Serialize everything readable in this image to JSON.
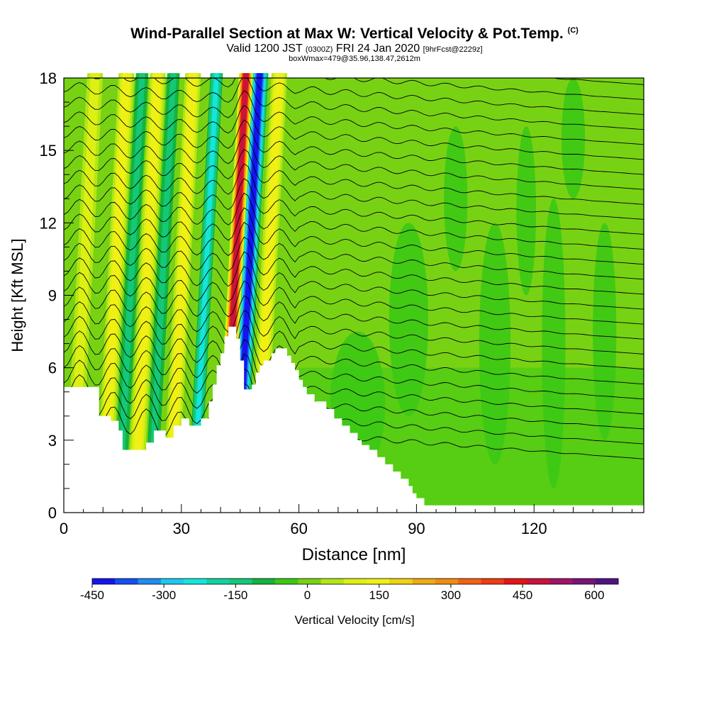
{
  "header": {
    "title": "Wind-Parallel Section at Max W: Vertical Velocity & Pot.Temp.",
    "title_mark": "(C)",
    "subtitle_a": "Valid 1200 JST",
    "subtitle_b": "(0300Z)",
    "subtitle_c": "FRI 24 Jan 2020",
    "subtitle_d": "[9hrFcst@2229z]",
    "box_line": "boxWmax=479@35.96,138.47,2612m"
  },
  "chart_data": {
    "type": "heatmap",
    "title": "Wind-Parallel Section at Max W: Vertical Velocity & Pot.Temp.",
    "xlabel": "Distance [nm]",
    "ylabel": "Height [Kft MSL]",
    "xlim": [
      0,
      148
    ],
    "ylim": [
      0,
      18
    ],
    "xticks": [
      0,
      30,
      60,
      90,
      120
    ],
    "yticks": [
      0,
      3,
      6,
      9,
      12,
      15,
      18
    ],
    "colorbar": {
      "label": "Vertical Velocity [cm/s]",
      "ticks": [
        -450,
        -300,
        -150,
        0,
        150,
        300,
        450,
        600
      ],
      "range": [
        -450,
        650
      ],
      "colors": [
        "#1414f0",
        "#1450f0",
        "#1e8cf0",
        "#1ec8f0",
        "#14e6dc",
        "#14d2a0",
        "#14c878",
        "#14b43c",
        "#3cc814",
        "#78d214",
        "#b4e614",
        "#dcf014",
        "#f0f014",
        "#f0d214",
        "#f0aa14",
        "#f08c14",
        "#f06414",
        "#f03c14",
        "#e61414",
        "#c8143c",
        "#a01464",
        "#781478",
        "#501482"
      ]
    },
    "terrain_profile": [
      [
        0,
        5.2
      ],
      [
        9,
        5.2
      ],
      [
        9,
        4
      ],
      [
        12,
        4
      ],
      [
        12,
        3.8
      ],
      [
        14,
        3.8
      ],
      [
        14,
        3.4
      ],
      [
        15,
        3.4
      ],
      [
        15,
        2.6
      ],
      [
        21,
        2.6
      ],
      [
        21,
        2.9
      ],
      [
        23,
        2.9
      ],
      [
        23,
        3.4
      ],
      [
        26,
        3.4
      ],
      [
        26,
        3.1
      ],
      [
        28,
        3.1
      ],
      [
        28,
        3.6
      ],
      [
        30,
        3.6
      ],
      [
        30,
        3.9
      ],
      [
        32,
        3.9
      ],
      [
        32,
        3.6
      ],
      [
        35,
        3.6
      ],
      [
        35,
        3.9
      ],
      [
        37,
        3.9
      ],
      [
        37,
        4.6
      ],
      [
        38,
        4.6
      ],
      [
        38,
        5.3
      ],
      [
        39,
        5.3
      ],
      [
        39,
        6.1
      ],
      [
        40,
        6.1
      ],
      [
        40,
        6.6
      ],
      [
        41,
        6.6
      ],
      [
        41,
        7.3
      ],
      [
        42,
        7.3
      ],
      [
        42,
        7.7
      ],
      [
        44,
        7.7
      ],
      [
        44,
        7.2
      ],
      [
        45,
        7.2
      ],
      [
        45,
        6.3
      ],
      [
        46,
        6.3
      ],
      [
        46,
        5.1
      ],
      [
        48,
        5.1
      ],
      [
        48,
        5.3
      ],
      [
        49,
        5.3
      ],
      [
        49,
        5.8
      ],
      [
        50,
        5.8
      ],
      [
        50,
        6.1
      ],
      [
        51,
        6.1
      ],
      [
        51,
        6.3
      ],
      [
        53,
        6.3
      ],
      [
        53,
        6.6
      ],
      [
        54,
        6.6
      ],
      [
        54,
        6.8
      ],
      [
        57,
        6.8
      ],
      [
        57,
        6.5
      ],
      [
        58,
        6.5
      ],
      [
        58,
        6.2
      ],
      [
        59,
        6.2
      ],
      [
        59,
        5.9
      ],
      [
        60,
        5.9
      ],
      [
        60,
        5.5
      ],
      [
        61,
        5.5
      ],
      [
        61,
        5.2
      ],
      [
        62,
        5.2
      ],
      [
        62,
        4.9
      ],
      [
        64,
        4.9
      ],
      [
        64,
        4.6
      ],
      [
        67,
        4.6
      ],
      [
        67,
        4.3
      ],
      [
        69,
        4.3
      ],
      [
        69,
        3.9
      ],
      [
        71,
        3.9
      ],
      [
        71,
        3.6
      ],
      [
        73,
        3.6
      ],
      [
        73,
        3.3
      ],
      [
        75,
        3.3
      ],
      [
        75,
        3
      ],
      [
        76,
        3
      ],
      [
        76,
        2.8
      ],
      [
        78,
        2.8
      ],
      [
        78,
        2.6
      ],
      [
        80,
        2.6
      ],
      [
        80,
        2.3
      ],
      [
        82,
        2.3
      ],
      [
        82,
        2
      ],
      [
        84,
        2
      ],
      [
        84,
        1.7
      ],
      [
        86,
        1.7
      ],
      [
        86,
        1.4
      ],
      [
        88,
        1.4
      ],
      [
        88,
        1.1
      ],
      [
        89,
        1.1
      ],
      [
        89,
        0.8
      ],
      [
        90,
        0.8
      ],
      [
        90,
        0.6
      ],
      [
        92,
        0.6
      ],
      [
        92,
        0.3
      ],
      [
        148,
        0.3
      ]
    ],
    "updrafts_cm_s": [
      {
        "x_at_18kft": 46.5,
        "peak": 479
      },
      {
        "x_at_18kft": 33,
        "peak": 150
      },
      {
        "x_at_18kft": 55,
        "peak": 150
      },
      {
        "x_at_18kft": 24,
        "peak": 150
      },
      {
        "x_at_18kft": 16,
        "peak": 150
      },
      {
        "x_at_18kft": 8,
        "peak": 120
      }
    ],
    "downdrafts_cm_s": [
      {
        "x_at_18kft": 50,
        "peak": -450
      },
      {
        "x_at_18kft": 39,
        "peak": -250
      },
      {
        "x_at_18kft": 28,
        "peak": -150
      },
      {
        "x_at_18kft": 20,
        "peak": -150
      }
    ],
    "isentrope_count": 26
  }
}
